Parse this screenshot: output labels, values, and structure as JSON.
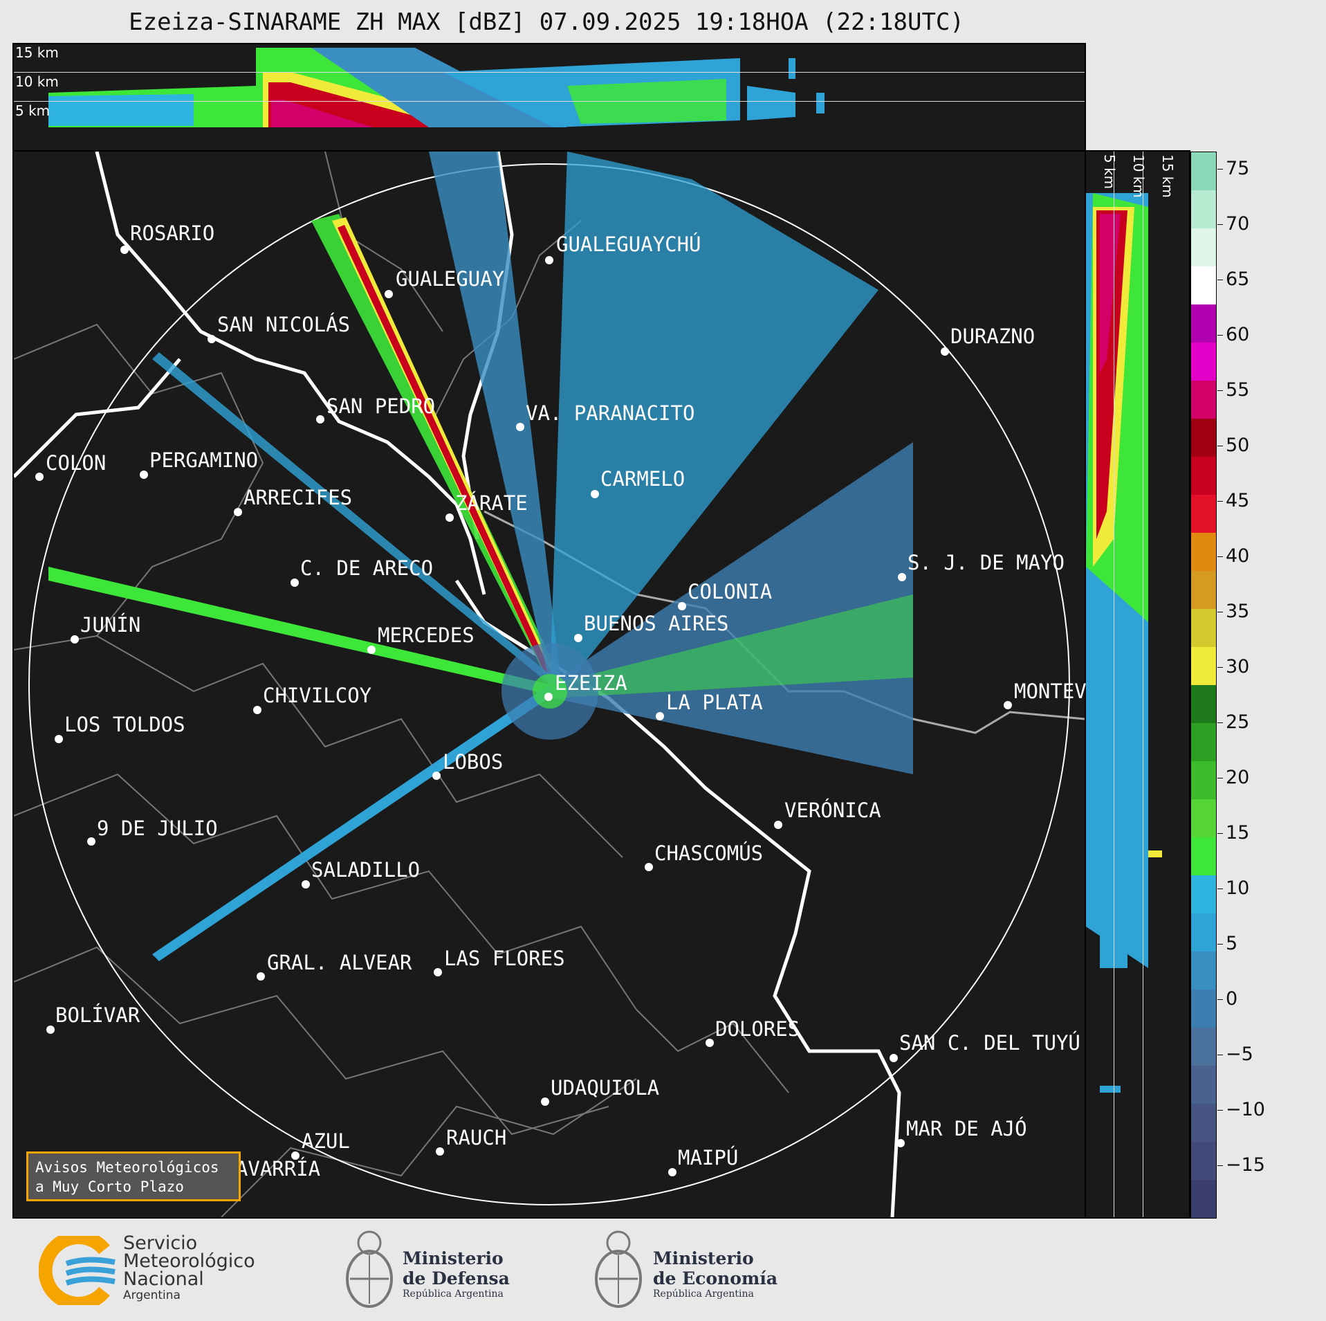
{
  "title": "Ezeiza-SINARAME ZH MAX [dBZ] 07.09.2025 19:18HOA (22:18UTC)",
  "top_panel": {
    "km_labels": [
      "15 km",
      "10 km",
      "5 km"
    ]
  },
  "right_panel": {
    "km_labels": [
      "5 km",
      "10 km",
      "15 km"
    ]
  },
  "colorbar": {
    "ticks": [
      "75",
      "70",
      "65",
      "60",
      "55",
      "50",
      "45",
      "40",
      "35",
      "30",
      "25",
      "20",
      "15",
      "10",
      "5",
      "0",
      "−5",
      "−10",
      "−15"
    ],
    "colors": [
      "#3b3f6b",
      "#434a7a",
      "#475585",
      "#4a6290",
      "#4a709c",
      "#3d7eb0",
      "#3a8ec2",
      "#2fa2d6",
      "#2fb4e0",
      "#3ee63a",
      "#55d636",
      "#3cbc2c",
      "#2e9e24",
      "#1f7a1c",
      "#f0ea3a",
      "#d4c92e",
      "#d49a22",
      "#e08a12",
      "#e3112a",
      "#c8001e",
      "#a00012",
      "#d4006a",
      "#e400c8",
      "#b000b0",
      "#ffffff",
      "#e0f5ea",
      "#b8ead2",
      "#8ad8b8"
    ]
  },
  "cities": [
    {
      "id": "rosario",
      "name": "ROSARIO"
    },
    {
      "id": "gualeguaychu",
      "name": "GUALEGUAYCHÚ"
    },
    {
      "id": "gualeguay",
      "name": "GUALEGUAY"
    },
    {
      "id": "san-nicolas",
      "name": "SAN NICOLÁS"
    },
    {
      "id": "durazno",
      "name": "DURAZNO"
    },
    {
      "id": "san-pedro",
      "name": "SAN PEDRO"
    },
    {
      "id": "va-paranacito",
      "name": "VA. PARANACITO"
    },
    {
      "id": "colon",
      "name": "COLON"
    },
    {
      "id": "pergamino",
      "name": "PERGAMINO"
    },
    {
      "id": "carmelo",
      "name": "CARMELO"
    },
    {
      "id": "arrecifes",
      "name": "ARRECIFES"
    },
    {
      "id": "zarate",
      "name": "ZÁRATE"
    },
    {
      "id": "c-de-areco",
      "name": "C. DE ARECO"
    },
    {
      "id": "sj-de-mayo",
      "name": "S. J. DE MAYO"
    },
    {
      "id": "colonia",
      "name": "COLONIA"
    },
    {
      "id": "junin",
      "name": "JUNÍN"
    },
    {
      "id": "buenos-aires",
      "name": "BUENOS AIRES"
    },
    {
      "id": "mercedes",
      "name": "MERCEDES"
    },
    {
      "id": "ezeiza",
      "name": "EZEIZA"
    },
    {
      "id": "montevideo",
      "name": "MONTEV"
    },
    {
      "id": "chivilcoy",
      "name": "CHIVILCOY"
    },
    {
      "id": "la-plata",
      "name": "LA PLATA"
    },
    {
      "id": "los-toldos",
      "name": "LOS TOLDOS"
    },
    {
      "id": "lobos",
      "name": "LOBOS"
    },
    {
      "id": "veronica",
      "name": "VERÓNICA"
    },
    {
      "id": "9-de-julio",
      "name": "9 DE JULIO"
    },
    {
      "id": "chascomus",
      "name": "CHASCOMÚS"
    },
    {
      "id": "saladillo",
      "name": "SALADILLO"
    },
    {
      "id": "gral-alvear",
      "name": "GRAL. ALVEAR"
    },
    {
      "id": "las-flores",
      "name": "LAS FLORES"
    },
    {
      "id": "bolivar",
      "name": "BOLÍVAR"
    },
    {
      "id": "dolores",
      "name": "DOLORES"
    },
    {
      "id": "san-c-del-tuyu",
      "name": "SAN C. DEL TUYÚ"
    },
    {
      "id": "udaquiola",
      "name": "UDAQUIOLA"
    },
    {
      "id": "mar-de-ajo",
      "name": "MAR DE AJÓ"
    },
    {
      "id": "azul",
      "name": "AZUL"
    },
    {
      "id": "rauch",
      "name": "RAUCH"
    },
    {
      "id": "maipu",
      "name": "MAIPÚ"
    },
    {
      "id": "olavarria",
      "name": "OLAVARRÍA"
    }
  ],
  "avisos": {
    "line1": "Avisos Meteorológicos",
    "line2": "a Muy Corto Plazo"
  },
  "logos": {
    "smn": {
      "line1": "Servicio",
      "line2": "Meteorológico",
      "line3": "Nacional",
      "line4": "Argentina"
    },
    "defensa": {
      "line1": "Ministerio",
      "line2": "de Defensa",
      "line3": "República Argentina"
    },
    "economia": {
      "line1": "Ministerio",
      "line2": "de Economía",
      "line3": "República Argentina"
    }
  }
}
